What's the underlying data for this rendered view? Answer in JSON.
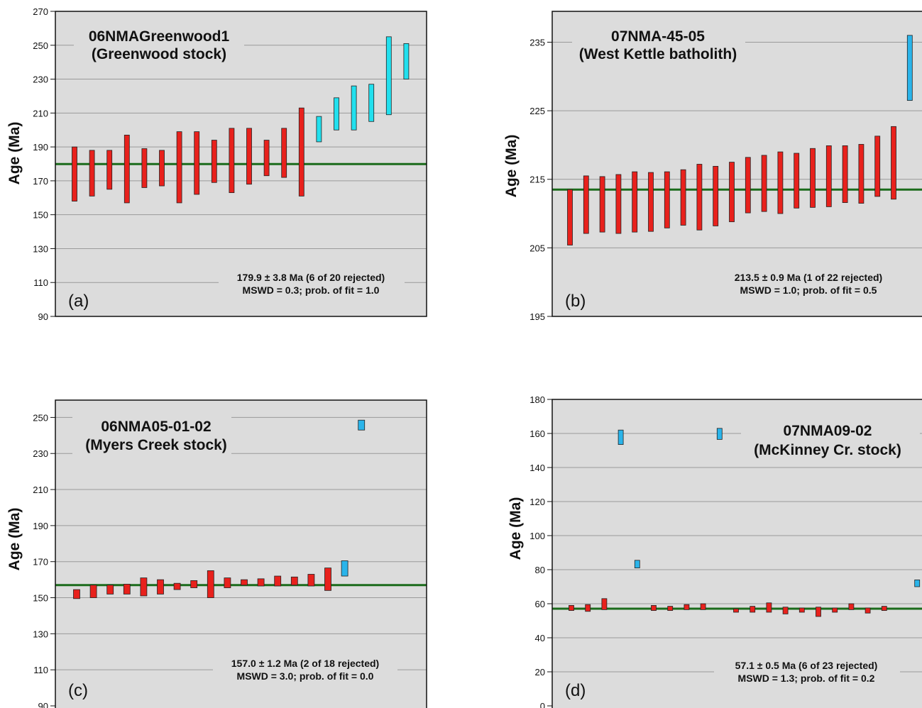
{
  "chart_data": [
    {
      "type": "bar",
      "panel_label": "(a)",
      "title": [
        "06NMAGreenwood1",
        "(Greenwood stock)"
      ],
      "ylabel": "Age (Ma)",
      "ylim": [
        90,
        270
      ],
      "yticks": [
        90,
        110,
        130,
        150,
        170,
        190,
        210,
        230,
        250,
        270
      ],
      "weighted_mean": 179.9,
      "annotation": [
        "179.9 ± 3.8 Ma (6 of 20 rejected)",
        "MSWD = 0.3; prob. of fit = 1.0"
      ],
      "colors": {
        "accepted": "#e8211c",
        "rejected": "#22e0ee",
        "mean_line": "#1b6b1b",
        "plot_bg": "#dcdcdc"
      },
      "series": [
        {
          "name": "",
          "status": "accepted",
          "ranges": [
            [
              158,
              190
            ],
            [
              161,
              188
            ],
            [
              165,
              188
            ],
            [
              157,
              197
            ],
            [
              166,
              189
            ],
            [
              167,
              188
            ],
            [
              157,
              199
            ],
            [
              162,
              199
            ],
            [
              169,
              194
            ],
            [
              163,
              201
            ],
            [
              168,
              201
            ],
            [
              173,
              194
            ],
            [
              172,
              201
            ],
            [
              161,
              213
            ]
          ]
        },
        {
          "name": "",
          "status": "rejected",
          "ranges": [
            [
              193,
              208
            ],
            [
              200,
              219
            ],
            [
              200,
              226
            ],
            [
              205,
              227
            ],
            [
              209,
              255
            ],
            [
              230,
              251
            ]
          ]
        }
      ]
    },
    {
      "type": "bar",
      "panel_label": "(b)",
      "title": [
        "07NMA-45-05",
        "(West Kettle batholith)"
      ],
      "ylabel": "Age (Ma)",
      "ylim": [
        195,
        239.5
      ],
      "yticks": [
        195,
        205,
        215,
        225,
        235
      ],
      "weighted_mean": 213.5,
      "annotation": [
        "213.5 ± 0.9 Ma (1 of 22 rejected)",
        "MSWD = 1.0; prob. of fit = 0.5"
      ],
      "colors": {
        "accepted": "#e8211c",
        "rejected": "#2ab4ea",
        "mean_line": "#1b6b1b",
        "plot_bg": "#dcdcdc"
      },
      "series": [
        {
          "name": "",
          "status": "accepted",
          "ranges": [
            [
              205.4,
              213.5
            ],
            [
              207.1,
              215.5
            ],
            [
              207.3,
              215.4
            ],
            [
              207.1,
              215.7
            ],
            [
              207.3,
              216.1
            ],
            [
              207.4,
              216.0
            ],
            [
              207.9,
              216.1
            ],
            [
              208.3,
              216.4
            ],
            [
              207.6,
              217.2
            ],
            [
              208.2,
              216.9
            ],
            [
              208.8,
              217.5
            ],
            [
              210.1,
              218.2
            ],
            [
              210.3,
              218.5
            ],
            [
              210.0,
              219.0
            ],
            [
              210.8,
              218.8
            ],
            [
              210.9,
              219.5
            ],
            [
              211.0,
              219.9
            ],
            [
              211.6,
              219.9
            ],
            [
              211.5,
              220.1
            ],
            [
              212.5,
              221.3
            ],
            [
              212.1,
              222.7
            ]
          ]
        },
        {
          "name": "",
          "status": "rejected",
          "ranges": [
            [
              226.5,
              236.0
            ]
          ]
        }
      ]
    },
    {
      "type": "bar",
      "panel_label": "(c)",
      "title": [
        "06NMA05-01-02",
        "(Myers Creek stock)"
      ],
      "ylabel": "Age (Ma)",
      "ylim": [
        90,
        260
      ],
      "yticks": [
        90,
        110,
        130,
        150,
        170,
        190,
        210,
        230,
        250
      ],
      "weighted_mean": 157.0,
      "annotation": [
        "157.0 ± 1.2 Ma (2 of 18 rejected)",
        "MSWD = 3.0; prob. of fit = 0.0"
      ],
      "colors": {
        "accepted": "#e8211c",
        "rejected": "#2ab4ea",
        "mean_line": "#1b6b1b",
        "plot_bg": "#dcdcdc"
      },
      "series": [
        {
          "name": "",
          "status": "accepted",
          "ranges": [
            [
              149.5,
              154.5
            ],
            [
              150,
              157
            ],
            [
              152,
              157
            ],
            [
              152,
              157.5
            ],
            [
              151,
              161
            ],
            [
              152,
              160
            ],
            [
              154.5,
              158
            ],
            [
              155.5,
              159.5
            ],
            [
              150,
              165
            ],
            [
              155.5,
              161
            ],
            [
              157,
              160
            ],
            [
              156.5,
              160.5
            ],
            [
              156.5,
              162
            ],
            [
              157,
              161.5
            ],
            [
              156.5,
              163
            ],
            [
              154,
              166.5
            ]
          ]
        },
        {
          "name": "",
          "status": "rejected",
          "ranges": [
            [
              162,
              170.5
            ],
            [
              243,
              248.5
            ]
          ]
        }
      ]
    },
    {
      "type": "bar",
      "panel_label": "(d)",
      "title": [
        "07NMA09-02",
        "(McKinney Cr. stock)"
      ],
      "ylabel": "Age (Ma)",
      "ylim": [
        0,
        180
      ],
      "yticks": [
        0,
        20,
        40,
        60,
        80,
        100,
        120,
        140,
        160,
        180
      ],
      "weighted_mean": 57.1,
      "annotation": [
        "57.1 ± 0.5 Ma (6 of 23 rejected)",
        "MSWD = 1.3; prob. of fit = 0.2"
      ],
      "colors": {
        "accepted": "#e8211c",
        "rejected": "#2ab4ea",
        "mean_line": "#1b6b1b",
        "plot_bg": "#dcdcdc"
      },
      "series": [
        {
          "name": "",
          "status": "accepted",
          "ranges": [
            [
              56,
              59
            ],
            [
              55.5,
              59.5
            ],
            [
              56.5,
              63
            ],
            [
              56,
              59
            ],
            [
              56,
              58.5
            ],
            [
              56.5,
              59.5
            ],
            [
              56.5,
              60
            ],
            [
              55,
              57
            ],
            [
              55,
              58.5
            ],
            [
              55,
              60.5
            ],
            [
              54,
              58
            ],
            [
              55,
              57.5
            ],
            [
              52.5,
              58
            ],
            [
              55,
              57.5
            ],
            [
              56.5,
              60
            ],
            [
              54.5,
              57.5
            ],
            [
              56,
              58.5
            ]
          ]
        },
        {
          "name": "",
          "status": "rejected",
          "ranges": [
            [
              153.5,
              162
            ],
            [
              81,
              85.5
            ],
            [
              156.5,
              163
            ],
            [
              70,
              74
            ]
          ]
        }
      ]
    }
  ]
}
